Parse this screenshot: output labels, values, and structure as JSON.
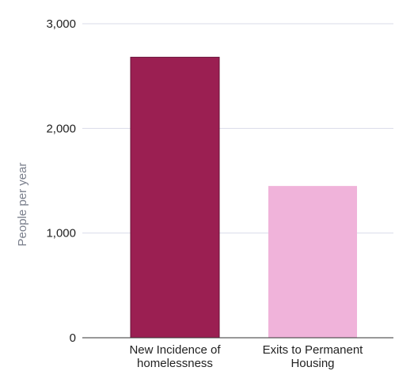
{
  "chart_data": {
    "type": "bar",
    "categories": [
      [
        "New Incidence of",
        "homelessness"
      ],
      [
        "Exits to Permanent",
        "Housing"
      ]
    ],
    "values": [
      2680,
      1450
    ],
    "ylabel": "People per year",
    "xlabel": "",
    "ylim": [
      0,
      3000
    ],
    "yticks": [
      0,
      1000,
      2000,
      3000
    ],
    "ytick_labels": [
      "0",
      "1,000",
      "2,000",
      "3,000"
    ],
    "grid": true,
    "colors": {
      "bars": [
        "#9b1f52",
        "#f0b3da"
      ],
      "bar_outline": "#6a1238",
      "grid": "#d9dbea",
      "axis": "#333333"
    }
  }
}
